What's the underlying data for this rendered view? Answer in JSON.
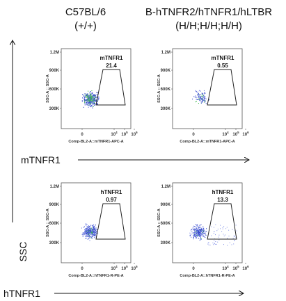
{
  "columns": [
    {
      "name": "C57BL/6",
      "genotype": "(+/+)"
    },
    {
      "name": "B-hTNFR2/hTNFR1/hLTBR",
      "genotype": "(H/H;H/H;H/H)"
    }
  ],
  "rows": [
    {
      "marker": "mTNFR1",
      "x_axis_label": "Comp-BL2-A::mTNFR1-APC-A",
      "panels": [
        {
          "gate": "mTNFR1",
          "percent": "21.4"
        },
        {
          "gate": "mTNFR1",
          "percent": "0.55"
        }
      ]
    },
    {
      "marker": "hTNFR1",
      "x_axis_label": "Comp-BL2-A::hTNFR1-R-PE-A",
      "panels": [
        {
          "gate": "hTNFR1",
          "percent": "0.97"
        },
        {
          "gate": "hTNFR1",
          "percent": "13.3"
        }
      ]
    }
  ],
  "y_axis_label": "SSC-A :: SSC-A",
  "y_ticks": [
    "1.2M",
    "900K",
    "600K",
    "300K"
  ],
  "x_ticks": [
    {
      "base": "0",
      "exp": ""
    },
    {
      "base": "10",
      "exp": "4"
    },
    {
      "base": "10",
      "exp": "5"
    },
    {
      "base": "10",
      "exp": "6"
    }
  ],
  "side_label": "SSC"
}
